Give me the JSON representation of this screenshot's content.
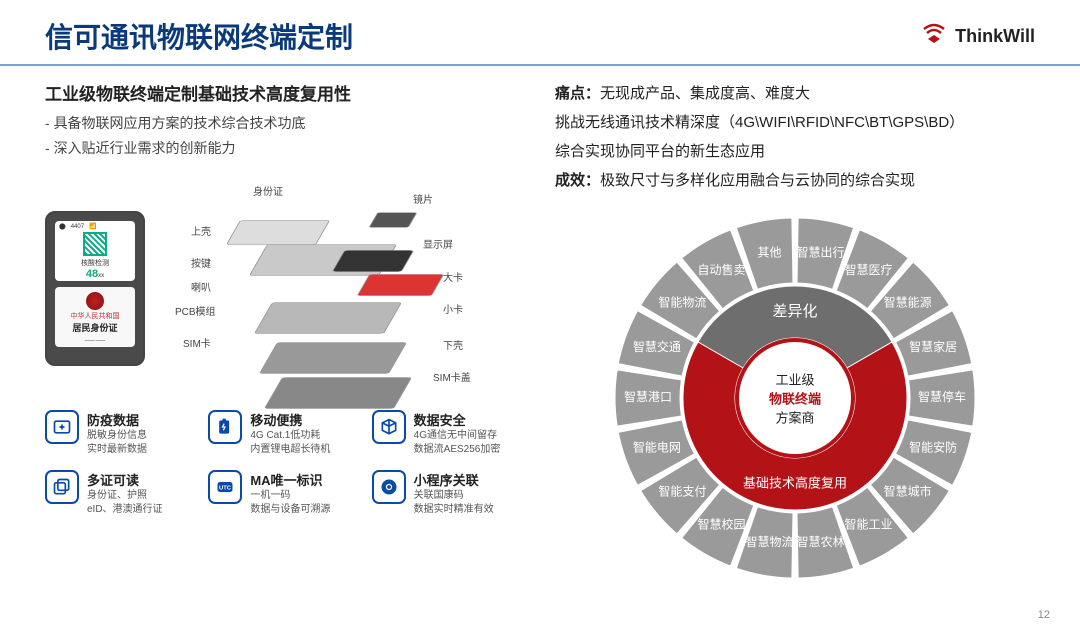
{
  "header": {
    "title": "信可通讯物联网终端定制",
    "brand": "ThinkWill"
  },
  "left": {
    "sub_head": "工业级物联终端定制基础技术高度复用性",
    "bullets": [
      "具备物联网应用方案的技术综合技术功底",
      "深入贴近行业需求的创新能力"
    ],
    "device": {
      "screen_top": "核酸检测",
      "screen_num": "48",
      "screen_unit": "xx",
      "id_label_small": "身份证",
      "id_line1": "中华人民共和国",
      "id_line2": "居民身份证"
    },
    "exploded_labels": {
      "shell_top": "身份证",
      "screen": "显示屏",
      "top_cover": "上壳",
      "chip": "镜片",
      "keys": "按键",
      "big_card": "大卡",
      "speaker": "喇叭",
      "small_card": "小卡",
      "pcb": "PCB模组",
      "bottom": "下壳",
      "sim": "SIM卡",
      "sim_tray": "SIM卡盖"
    },
    "features": [
      {
        "icon": "medical",
        "title": "防疫数据",
        "desc": "脱敏身份信息\n实时最新数据"
      },
      {
        "icon": "battery",
        "title": "移动便携",
        "desc": "4G Cat.1低功耗\n内置锂电超长待机"
      },
      {
        "icon": "cube",
        "title": "数据安全",
        "desc": "4G通信无中间留存\n数据流AES256加密"
      },
      {
        "icon": "cards",
        "title": "多证可读",
        "desc": "身份证、护照\neID、港澳通行证"
      },
      {
        "icon": "utc",
        "title": "MA唯一标识",
        "desc": "一机一码\n数据与设备可溯源"
      },
      {
        "icon": "link",
        "title": "小程序关联",
        "desc": "关联国康码\n数据实时精准有效"
      }
    ]
  },
  "right": {
    "paras": [
      {
        "bold": "痛点：",
        "text": "无现成产品、集成度高、难度大"
      },
      {
        "bold": "",
        "text": "挑战无线通讯技术精深度（4G\\WIFI\\RFID\\NFC\\BT\\GPS\\BD）"
      },
      {
        "bold": "",
        "text": "综合实现协同平台的新生态应用"
      },
      {
        "bold": "成效：",
        "text": "极致尺寸与多样化应用融合与云协同的综合实现"
      }
    ],
    "wheel": {
      "center": {
        "l1": "工业级",
        "l2": "物联终端",
        "l3": "方案商"
      },
      "inner_top": "差异化",
      "inner_bottom": "基础技术高度复用",
      "inner_colors": {
        "top": "#6e6e6e",
        "bottom": "#b31217",
        "center_ring": "#b31217",
        "center_fill": "#ffffff"
      },
      "outer_segments": [
        "智慧出行",
        "智慧医疗",
        "智慧能源",
        "智慧家居",
        "智慧停车",
        "智能安防",
        "智慧城市",
        "智能工业",
        "智慧农林",
        "智慧物流",
        "智慧校园",
        "智能支付",
        "智能电网",
        "智慧港口",
        "智慧交通",
        "智能物流",
        "自动售卖",
        "其他"
      ],
      "outer_color": "#9a9a9a",
      "outer_text_color": "#ffffff",
      "gap_deg": 2
    }
  },
  "page_number": "12",
  "colors": {
    "title": "#0a3a7a",
    "accent_red": "#b31217",
    "icon_blue": "#0a4aa8",
    "text_dark": "#222222",
    "text_grey": "#555555",
    "divider": "#7a9fd2"
  }
}
